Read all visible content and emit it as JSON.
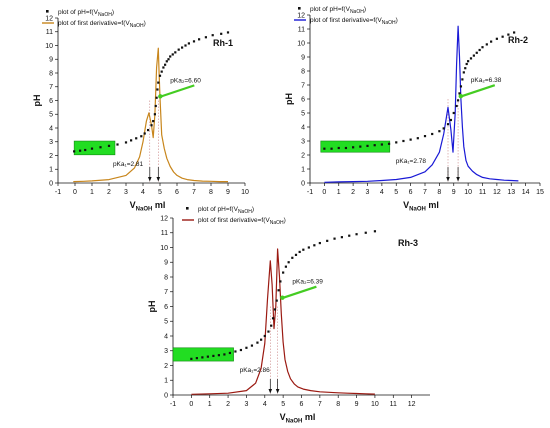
{
  "colors": {
    "ph_points": "#111111",
    "box_fill": "#22dd22",
    "arrow": "#44cc22"
  },
  "chart_data": [
    {
      "type": "line",
      "title": "Rh-1",
      "xlabel_main": "V",
      "xlabel_sub": "NaOH",
      "xlabel_unit": " ml",
      "ylabel": "pH",
      "xlim": [
        -1,
        10
      ],
      "ylim": [
        0,
        12
      ],
      "xticks": [
        -1,
        0,
        1,
        2,
        3,
        4,
        5,
        6,
        7,
        8,
        9,
        10
      ],
      "yticks": [
        0,
        1,
        2,
        3,
        4,
        5,
        6,
        7,
        8,
        9,
        10,
        11,
        12
      ],
      "legend": [
        "plot of pH=f(V",
        "NaOH",
        ")",
        "plot of first derivative=f(V",
        "NaOH",
        ")"
      ],
      "deriv_color": "#c8861c",
      "series": [
        {
          "name": "plot of pH=f(VNaOH)",
          "kind": "scatter",
          "x": [
            -0.05,
            0.3,
            0.6,
            1.0,
            1.5,
            2.0,
            2.5,
            3.0,
            3.3,
            3.6,
            3.9,
            4.1,
            4.3,
            4.5,
            4.6,
            4.7,
            4.75,
            4.8,
            4.85,
            4.9,
            5.0,
            5.1,
            5.2,
            5.3,
            5.4,
            5.5,
            5.6,
            5.75,
            5.9,
            6.1,
            6.3,
            6.5,
            6.7,
            7.0,
            7.3,
            7.7,
            8.1,
            8.6,
            9.0
          ],
          "y": [
            2.3,
            2.35,
            2.4,
            2.5,
            2.6,
            2.7,
            2.8,
            2.95,
            3.1,
            3.25,
            3.4,
            3.6,
            3.85,
            4.2,
            4.5,
            5.0,
            5.6,
            6.2,
            6.8,
            7.3,
            7.8,
            8.1,
            8.4,
            8.6,
            8.85,
            9.0,
            9.2,
            9.35,
            9.5,
            9.7,
            9.85,
            10.0,
            10.15,
            10.3,
            10.45,
            10.6,
            10.75,
            10.85,
            10.95
          ]
        },
        {
          "name": "plot of first derivative=f(VNaOH)",
          "kind": "line",
          "x": [
            -0.1,
            0.5,
            1.0,
            2.0,
            3.0,
            3.5,
            3.8,
            4.0,
            4.2,
            4.35,
            4.5,
            4.6,
            4.7,
            4.8,
            4.9,
            4.95,
            5.0,
            5.1,
            5.25,
            5.4,
            5.6,
            5.8,
            6.0,
            6.3,
            6.6,
            7.0,
            7.5,
            8.0,
            8.5,
            9.0
          ],
          "y": [
            0.1,
            0.12,
            0.15,
            0.25,
            0.55,
            1.1,
            1.9,
            3.0,
            4.5,
            5.1,
            4.2,
            3.3,
            5.0,
            8.4,
            9.8,
            8.0,
            6.2,
            3.5,
            2.5,
            1.8,
            1.2,
            0.8,
            0.55,
            0.35,
            0.25,
            0.18,
            0.14,
            0.12,
            0.1,
            0.1
          ]
        }
      ],
      "annotations": {
        "pka1": "pKa₁=2.81",
        "pka2": "pKa₂=6.60"
      },
      "arrows_x": [
        4.4,
        4.9
      ],
      "pka2_pt": [
        4.9,
        6.3
      ],
      "box_x": [
        -0.05,
        2.35
      ],
      "box_y": [
        2.05,
        3.05
      ]
    },
    {
      "type": "line",
      "title": "Rh-2",
      "xlabel_main": "V",
      "xlabel_sub": "NaOH",
      "xlabel_unit": " ml",
      "ylabel": "pH",
      "xlim": [
        -1,
        15
      ],
      "ylim": [
        0,
        12
      ],
      "xticks": [
        -1,
        0,
        1,
        2,
        3,
        4,
        5,
        6,
        7,
        8,
        9,
        10,
        11,
        12,
        13,
        14,
        15
      ],
      "yticks": [
        0,
        1,
        2,
        3,
        4,
        5,
        6,
        7,
        8,
        9,
        10,
        11,
        12
      ],
      "legend": [
        "plot of pH=f(V",
        "NaOH",
        ")",
        "plot of first derivative=f(V",
        "NaOH",
        ")"
      ],
      "deriv_color": "#1a1ad6",
      "series": [
        {
          "name": "plot of pH=f(VNaOH)",
          "kind": "scatter",
          "x": [
            0.0,
            0.5,
            1.0,
            1.5,
            2.0,
            2.5,
            3.0,
            3.5,
            4.0,
            4.5,
            5.0,
            5.5,
            6.0,
            6.5,
            7.0,
            7.5,
            8.0,
            8.3,
            8.6,
            8.8,
            9.0,
            9.2,
            9.3,
            9.4,
            9.5,
            9.6,
            9.7,
            9.8,
            9.9,
            10.0,
            10.2,
            10.4,
            10.6,
            10.8,
            11.0,
            11.3,
            11.6,
            12.0,
            12.4,
            12.8,
            13.2
          ],
          "y": [
            2.45,
            2.45,
            2.5,
            2.5,
            2.55,
            2.6,
            2.65,
            2.7,
            2.75,
            2.8,
            2.9,
            3.0,
            3.1,
            3.2,
            3.35,
            3.5,
            3.7,
            3.9,
            4.2,
            4.5,
            5.0,
            5.5,
            5.9,
            6.4,
            6.9,
            7.4,
            7.9,
            8.2,
            8.5,
            8.7,
            8.9,
            9.1,
            9.3,
            9.5,
            9.7,
            9.9,
            10.1,
            10.3,
            10.45,
            10.6,
            10.75
          ]
        },
        {
          "name": "plot of first derivative=f(VNaOH)",
          "kind": "line",
          "x": [
            0.0,
            1.0,
            2.0,
            3.0,
            4.0,
            5.0,
            6.0,
            7.0,
            7.5,
            8.0,
            8.3,
            8.6,
            8.8,
            8.95,
            9.1,
            9.2,
            9.3,
            9.4,
            9.5,
            9.6,
            9.7,
            9.85,
            10.0,
            10.3,
            10.6,
            11.0,
            11.5,
            12.0,
            12.5,
            13.0,
            13.5
          ],
          "y": [
            0.05,
            0.08,
            0.1,
            0.12,
            0.18,
            0.25,
            0.4,
            0.8,
            1.3,
            2.2,
            3.5,
            5.4,
            3.8,
            2.2,
            5.0,
            8.5,
            11.2,
            9.0,
            6.0,
            4.0,
            2.6,
            1.6,
            1.2,
            0.85,
            0.6,
            0.4,
            0.3,
            0.25,
            0.2,
            0.18,
            0.15
          ]
        }
      ],
      "annotations": {
        "pka1": "pKa₁=2.78",
        "pka2": "pKa₂=6.38"
      },
      "arrows_x": [
        8.6,
        9.3
      ],
      "pka2_pt": [
        9.35,
        6.2
      ],
      "box_x": [
        -0.25,
        4.55
      ],
      "box_y": [
        2.2,
        3.0
      ]
    },
    {
      "type": "line",
      "title": "Rh-3",
      "xlabel_main": "V",
      "xlabel_sub": "NaOH",
      "xlabel_unit": " ml",
      "ylabel": "pH",
      "xlim": [
        -1,
        13
      ],
      "ylim": [
        0,
        12
      ],
      "xticks": [
        -1,
        0,
        1,
        2,
        3,
        4,
        5,
        6,
        7,
        8,
        9,
        10,
        11,
        12
      ],
      "yticks": [
        0,
        1,
        2,
        3,
        4,
        5,
        6,
        7,
        8,
        9,
        10,
        11,
        12
      ],
      "legend": [
        "plot of pH=f(V",
        "NaOH",
        ")",
        "plot of first derivative=f(V",
        "NaOH",
        ")"
      ],
      "deriv_color": "#9b1a12",
      "series": [
        {
          "name": "plot of pH=f(VNaOH)",
          "kind": "scatter",
          "x": [
            0.0,
            0.3,
            0.6,
            0.9,
            1.2,
            1.5,
            1.8,
            2.1,
            2.4,
            2.7,
            3.0,
            3.3,
            3.6,
            3.8,
            4.0,
            4.2,
            4.35,
            4.45,
            4.55,
            4.65,
            4.75,
            4.85,
            5.0,
            5.15,
            5.3,
            5.5,
            5.7,
            5.9,
            6.1,
            6.4,
            6.7,
            7.0,
            7.4,
            7.8,
            8.2,
            8.6,
            9.0,
            9.5,
            10.0
          ],
          "y": [
            2.45,
            2.5,
            2.55,
            2.6,
            2.65,
            2.7,
            2.75,
            2.85,
            2.95,
            3.05,
            3.2,
            3.35,
            3.55,
            3.75,
            4.0,
            4.3,
            4.7,
            5.2,
            5.8,
            6.4,
            7.1,
            7.7,
            8.3,
            8.7,
            9.0,
            9.3,
            9.5,
            9.7,
            9.85,
            10.0,
            10.15,
            10.3,
            10.45,
            10.6,
            10.7,
            10.8,
            10.9,
            11.0,
            11.1
          ]
        },
        {
          "name": "plot of first derivative=f(VNaOH)",
          "kind": "line",
          "x": [
            0.0,
            1.0,
            2.0,
            3.0,
            3.5,
            3.8,
            4.0,
            4.15,
            4.3,
            4.4,
            4.5,
            4.6,
            4.7,
            4.8,
            4.9,
            5.0,
            5.1,
            5.25,
            5.4,
            5.6,
            5.8,
            6.1,
            6.5,
            7.0,
            7.5,
            8.0,
            8.5,
            9.0,
            9.5,
            10.0
          ],
          "y": [
            0.05,
            0.08,
            0.12,
            0.3,
            0.8,
            1.8,
            3.5,
            6.5,
            9.1,
            7.5,
            4.5,
            6.0,
            9.9,
            8.0,
            5.5,
            3.6,
            2.4,
            1.6,
            1.1,
            0.75,
            0.55,
            0.4,
            0.3,
            0.22,
            0.18,
            0.15,
            0.12,
            0.1,
            0.08,
            0.06
          ]
        }
      ],
      "annotations": {
        "pka1": "pKa₁=2.86",
        "pka2": "pKa₂=6.39"
      },
      "arrows_x": [
        4.3,
        4.7
      ],
      "pka2_pt": [
        4.85,
        6.6
      ],
      "box_x": [
        -1.0,
        2.3
      ],
      "box_y": [
        2.3,
        3.2
      ]
    }
  ]
}
